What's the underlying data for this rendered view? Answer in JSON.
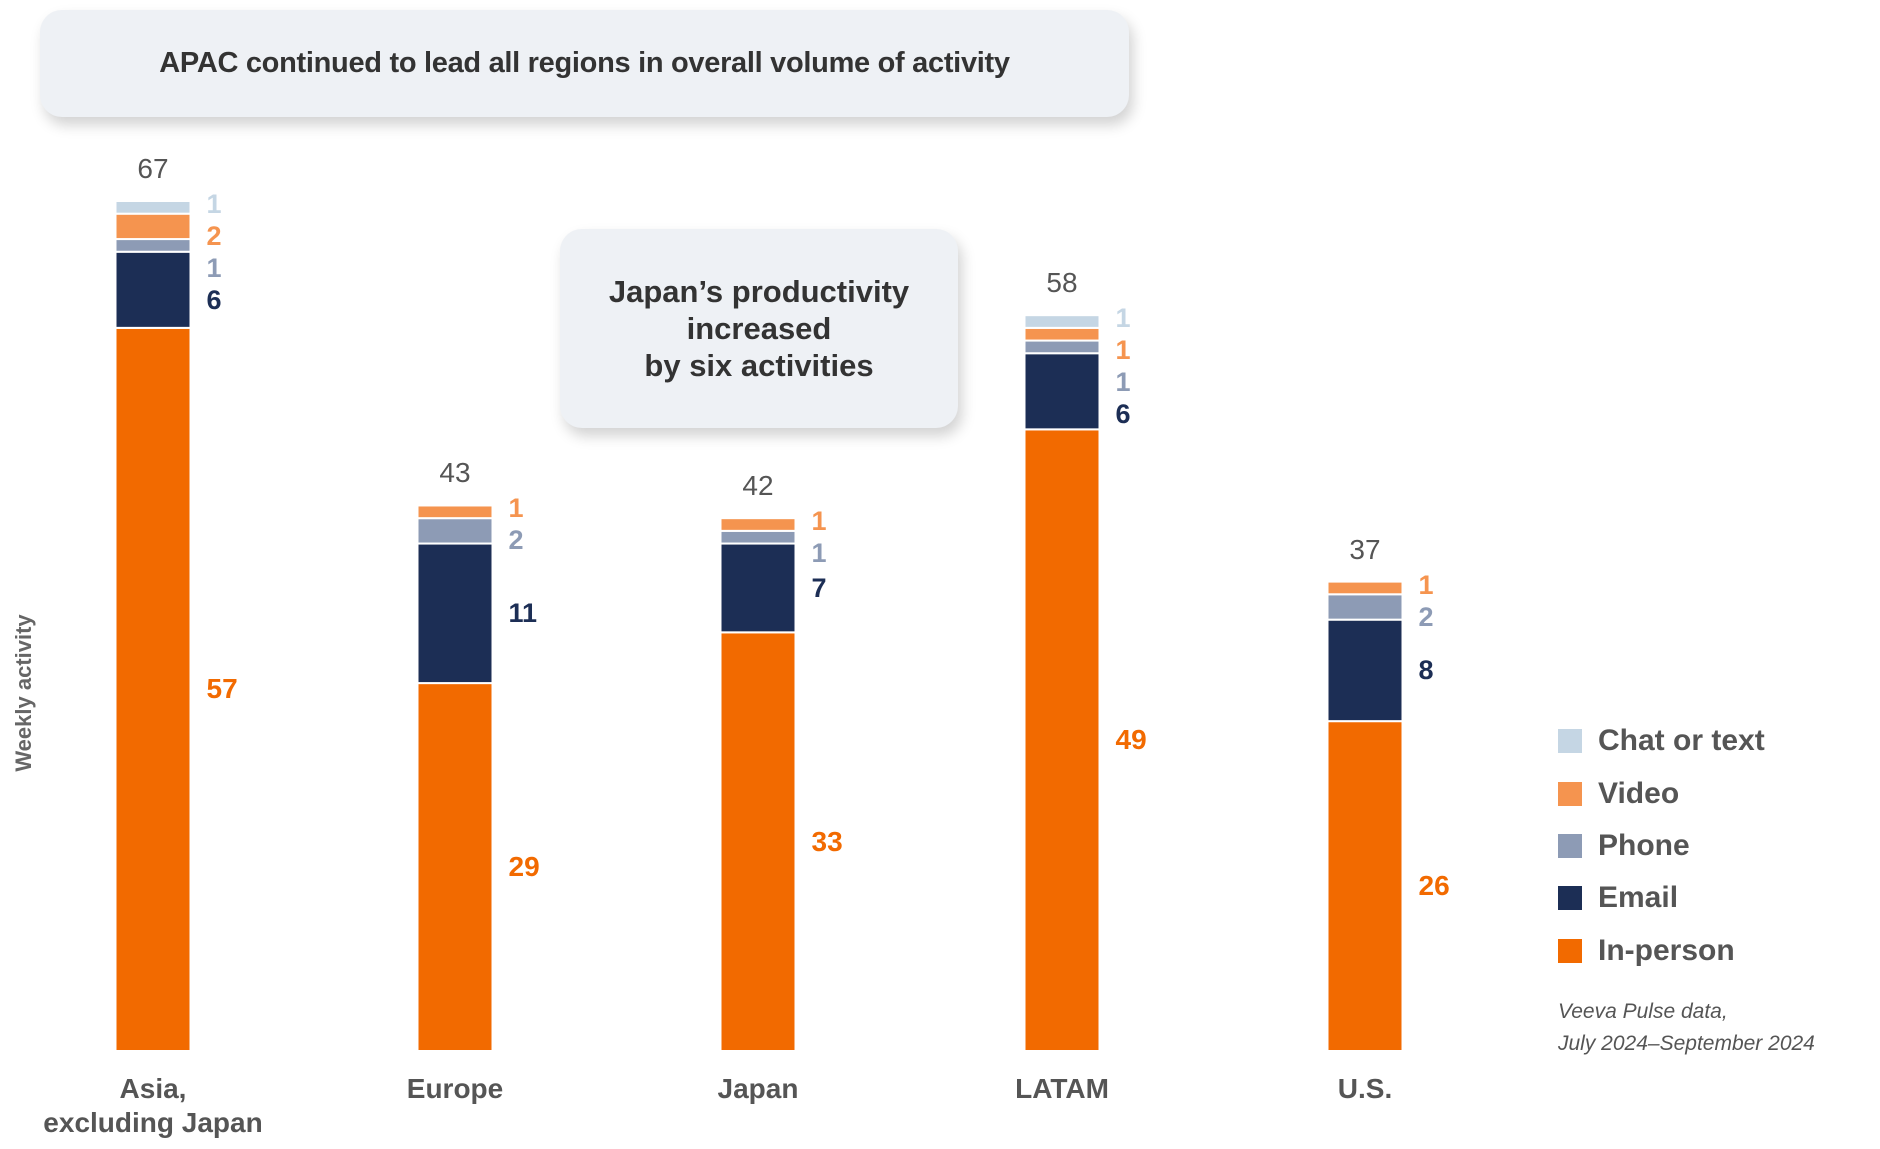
{
  "chart_data": {
    "type": "stacked_bar",
    "title": "APAC continued to lead all regions in overall volume of activity",
    "annotation": "Japan’s productivity\nincreased\nby six activities",
    "y_label": "Weekly activity",
    "source": "Veeva Pulse data,\nJuly 2024–September 2024",
    "categories": [
      "Asia,\nexcluding Japan",
      "Europe",
      "Japan",
      "LATAM",
      "U.S."
    ],
    "totals": [
      67,
      43,
      42,
      58,
      37
    ],
    "ylim": [
      0,
      67
    ],
    "series": [
      {
        "name": "In-person",
        "color": "#f26a00",
        "values": [
          57,
          29,
          33,
          49,
          26
        ]
      },
      {
        "name": "Email",
        "color": "#1c2e55",
        "values": [
          6,
          11,
          7,
          6,
          8
        ]
      },
      {
        "name": "Phone",
        "color": "#8d9bb5",
        "values": [
          1,
          2,
          1,
          1,
          2
        ]
      },
      {
        "name": "Video",
        "color": "#f5944f",
        "values": [
          2,
          1,
          1,
          1,
          1
        ]
      },
      {
        "name": "Chat or text",
        "color": "#c5d6e4",
        "values": [
          1,
          null,
          null,
          1,
          null
        ]
      }
    ]
  }
}
